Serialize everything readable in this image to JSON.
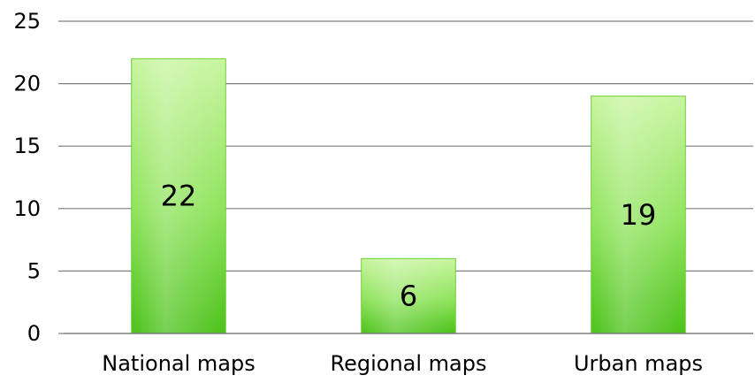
{
  "chart_data": {
    "type": "bar",
    "categories": [
      "National maps",
      "Regional maps",
      "Urban maps"
    ],
    "values": [
      22,
      6,
      19
    ],
    "data_labels": [
      "22",
      "6",
      "19"
    ],
    "ylim": [
      0,
      25
    ],
    "yticks": [
      0,
      5,
      10,
      15,
      20,
      25
    ],
    "ytick_labels": [
      "0",
      "5",
      "10",
      "15",
      "20",
      "25"
    ],
    "grid": "horizontal",
    "legend": "none",
    "colors": {
      "bar_light": "#c8f5a0",
      "bar_dark": "#4cc21a",
      "bar_border": "#6fcf3a",
      "grid": "#7f7f7f",
      "axis": "#7f7f7f"
    }
  }
}
